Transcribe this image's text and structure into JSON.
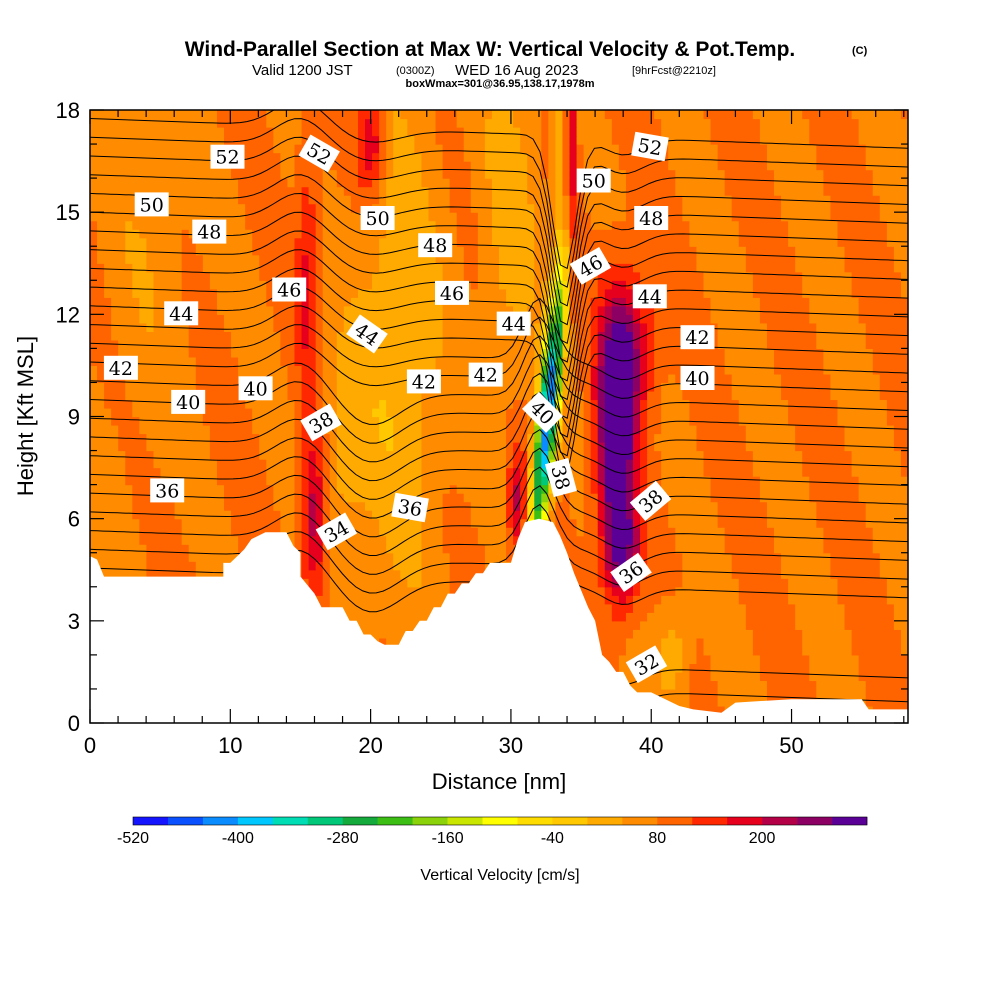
{
  "header": {
    "title": "Wind-Parallel Section at Max W: Vertical Velocity & Pot.Temp.",
    "title_mark": "(C)",
    "subtitle_a": "Valid 1200 JST",
    "subtitle_b": "(0300Z)",
    "subtitle_c": "WED 16 Aug 2023",
    "subtitle_d": "[9hrFcst@2210z]",
    "info": "boxWmax=301@36.95,138.17,1978m"
  },
  "chart_data": {
    "type": "heatmap",
    "title": "Wind-Parallel Section at Max W: Vertical Velocity & Pot.Temp.",
    "xlabel": "Distance [nm]",
    "ylabel": "Height [Kft MSL]",
    "xlim": [
      0,
      58.3
    ],
    "ylim": [
      0,
      18
    ],
    "x_ticks": [
      0,
      10,
      20,
      30,
      40,
      50
    ],
    "x_tick_labels": [
      "0",
      "10",
      "20",
      "30",
      "40",
      "50"
    ],
    "y_ticks": [
      0,
      3,
      6,
      9,
      12,
      15,
      18
    ],
    "y_tick_labels": [
      "0",
      "3",
      "6",
      "9",
      "12",
      "15",
      "18"
    ],
    "colorbar": {
      "label": "Vertical Velocity [cm/s]",
      "tick_labels": [
        "-520",
        "-400",
        "-280",
        "-160",
        "-40",
        "80",
        "200"
      ],
      "colors": [
        "#1414ff",
        "#0a50ff",
        "#0a8cff",
        "#00c8ff",
        "#00dcb4",
        "#00c878",
        "#14aa3c",
        "#3cbe14",
        "#8cd20a",
        "#c8e600",
        "#ffff00",
        "#ffdc00",
        "#ffc800",
        "#ffaa00",
        "#ff8c00",
        "#ff6400",
        "#ff2800",
        "#e6001e",
        "#b40046",
        "#8c0064",
        "#5a0096"
      ]
    },
    "terrain_kft": [
      [
        0,
        4.9
      ],
      [
        0.5,
        4.8
      ],
      [
        1,
        4.3
      ],
      [
        3,
        4.3
      ],
      [
        5,
        4.3
      ],
      [
        7,
        4.3
      ],
      [
        9,
        4.3
      ],
      [
        9.5,
        4.3
      ],
      [
        9.5,
        4.7
      ],
      [
        10,
        4.7
      ],
      [
        10.5,
        4.9
      ],
      [
        11,
        5.1
      ],
      [
        11.5,
        5.4
      ],
      [
        12.5,
        5.6
      ],
      [
        14,
        5.6
      ],
      [
        14.5,
        5.2
      ],
      [
        15,
        5.0
      ],
      [
        15,
        4.3
      ],
      [
        16,
        3.8
      ],
      [
        16.5,
        3.4
      ],
      [
        18,
        3.4
      ],
      [
        18.5,
        3.0
      ],
      [
        19,
        3.0
      ],
      [
        19.5,
        2.6
      ],
      [
        20,
        2.6
      ],
      [
        20.5,
        2.4
      ],
      [
        21,
        2.3
      ],
      [
        22,
        2.3
      ],
      [
        22.5,
        2.7
      ],
      [
        23,
        2.7
      ],
      [
        23.5,
        3.0
      ],
      [
        24,
        3.0
      ],
      [
        24.5,
        3.4
      ],
      [
        25,
        3.4
      ],
      [
        25.5,
        3.8
      ],
      [
        26,
        3.8
      ],
      [
        26.5,
        4.1
      ],
      [
        27,
        4.1
      ],
      [
        27.5,
        4.4
      ],
      [
        28,
        4.4
      ],
      [
        28.5,
        4.7
      ],
      [
        30,
        4.7
      ],
      [
        30.5,
        5.4
      ],
      [
        31,
        5.9
      ],
      [
        32,
        6.0
      ],
      [
        33,
        5.9
      ],
      [
        33.5,
        5.5
      ],
      [
        34,
        5.0
      ],
      [
        34.5,
        4.4
      ],
      [
        35,
        3.9
      ],
      [
        35.5,
        3.4
      ],
      [
        36,
        3.0
      ],
      [
        36.5,
        2.0
      ],
      [
        37,
        1.8
      ],
      [
        37.5,
        1.5
      ],
      [
        38,
        1.5
      ],
      [
        38.5,
        1.1
      ],
      [
        39,
        0.9
      ],
      [
        40,
        0.9
      ],
      [
        41,
        0.7
      ],
      [
        42,
        0.5
      ],
      [
        43,
        0.4
      ],
      [
        45,
        0.3
      ],
      [
        46,
        0.6
      ],
      [
        50,
        0.7
      ],
      [
        55,
        0.7
      ],
      [
        55.5,
        0.4
      ],
      [
        58.3,
        0.4
      ]
    ],
    "contour_labels": [
      {
        "value": "52",
        "x": 9.8,
        "y": 16.6,
        "rot": 0
      },
      {
        "value": "52",
        "x": 16.3,
        "y": 16.7,
        "rot": 30
      },
      {
        "value": "50",
        "x": 4.4,
        "y": 15.2,
        "rot": 0
      },
      {
        "value": "50",
        "x": 20.5,
        "y": 14.8,
        "rot": 0
      },
      {
        "value": "48",
        "x": 8.5,
        "y": 14.4,
        "rot": 0
      },
      {
        "value": "48",
        "x": 24.6,
        "y": 14.0,
        "rot": 0
      },
      {
        "value": "46",
        "x": 14.2,
        "y": 12.7,
        "rot": 0
      },
      {
        "value": "46",
        "x": 25.8,
        "y": 12.6,
        "rot": 0
      },
      {
        "value": "44",
        "x": 6.5,
        "y": 12.0,
        "rot": 0
      },
      {
        "value": "44",
        "x": 19.7,
        "y": 11.4,
        "rot": 35
      },
      {
        "value": "44",
        "x": 30.2,
        "y": 11.7,
        "rot": 0
      },
      {
        "value": "42",
        "x": 2.2,
        "y": 10.4,
        "rot": 0
      },
      {
        "value": "42",
        "x": 23.8,
        "y": 10.0,
        "rot": 0
      },
      {
        "value": "42",
        "x": 28.2,
        "y": 10.2,
        "rot": 0
      },
      {
        "value": "40",
        "x": 7.0,
        "y": 9.4,
        "rot": 0
      },
      {
        "value": "40",
        "x": 11.8,
        "y": 9.8,
        "rot": 0
      },
      {
        "value": "40",
        "x": 32.2,
        "y": 9.1,
        "rot": 45
      },
      {
        "value": "38",
        "x": 16.5,
        "y": 8.8,
        "rot": -30
      },
      {
        "value": "38",
        "x": 33.5,
        "y": 7.2,
        "rot": 75
      },
      {
        "value": "36",
        "x": 5.5,
        "y": 6.8,
        "rot": 0
      },
      {
        "value": "36",
        "x": 22.8,
        "y": 6.3,
        "rot": 10
      },
      {
        "value": "34",
        "x": 17.6,
        "y": 5.6,
        "rot": -30
      },
      {
        "value": "32",
        "x": 39.7,
        "y": 1.7,
        "rot": -30
      },
      {
        "value": "52",
        "x": 39.9,
        "y": 16.9,
        "rot": 10
      },
      {
        "value": "50",
        "x": 35.9,
        "y": 15.9,
        "rot": 0
      },
      {
        "value": "48",
        "x": 40.0,
        "y": 14.8,
        "rot": 0
      },
      {
        "value": "46",
        "x": 35.7,
        "y": 13.4,
        "rot": -30
      },
      {
        "value": "44",
        "x": 39.9,
        "y": 12.5,
        "rot": 0
      },
      {
        "value": "42",
        "x": 43.3,
        "y": 11.3,
        "rot": 0
      },
      {
        "value": "40",
        "x": 43.3,
        "y": 10.1,
        "rot": 0
      },
      {
        "value": "38",
        "x": 40.0,
        "y": 6.5,
        "rot": -40
      },
      {
        "value": "36",
        "x": 38.6,
        "y": 4.4,
        "rot": -35
      }
    ],
    "grid": false,
    "legend": "none"
  }
}
